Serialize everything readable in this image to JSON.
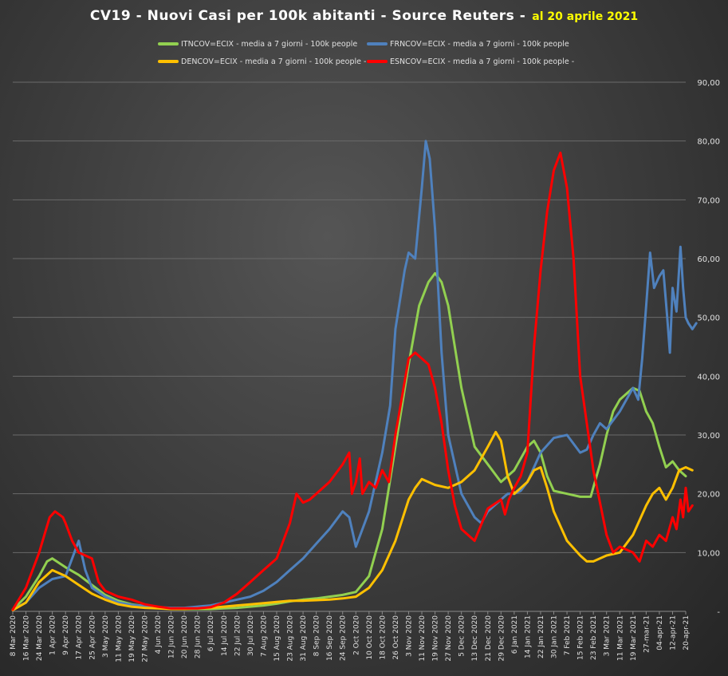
{
  "chart_data": {
    "type": "line",
    "title": "CV19 - Nuovi Casi per 100k abitanti  - Source Reuters -",
    "subtitle": "al 20 aprile 2021",
    "colors": {
      "title": "#ffffff",
      "subtitle": "#ffff00",
      "axis_text": "#e0e0e0",
      "grid": "#6a6a6a"
    },
    "ylim": [
      0,
      90
    ],
    "y_ticks": [
      "-",
      "10,00",
      "20,00",
      "30,00",
      "40,00",
      "50,00",
      "60,00",
      "70,00",
      "80,00",
      "90,00"
    ],
    "y_axis_side": "right",
    "grid": true,
    "legend_position": "top",
    "x_tick_labels": [
      "8 Mar 2020",
      "16 Mar 2020",
      "24 Mar 2020",
      "1 Apr 2020",
      "9 Apr 2020",
      "17 Apr 2020",
      "25 Apr 2020",
      "3 May 2020",
      "11 May 2020",
      "19 May 2020",
      "27 May 2020",
      "4 Jun 2020",
      "12 Jun 2020",
      "20 Jun 2020",
      "28 Jun 2020",
      "6 Jul 2020",
      "14 Jul 2020",
      "22 Jul 2020",
      "30 Jul 2020",
      "7 Aug 2020",
      "15 Aug 2020",
      "23 Aug 2020",
      "31 Aug 2020",
      "8 Sep 2020",
      "16 Sep 2020",
      "24 Sep 2020",
      "2 Oct 2020",
      "10 Oct 2020",
      "18 Oct 2020",
      "26 Oct 2020",
      "3 Nov 2020",
      "11 Nov 2020",
      "19 Nov 2020",
      "27 Nov 2020",
      "5 Dec 2020",
      "13 Dec 2020",
      "21 Dec 2020",
      "29 Dec 2020",
      "6 Jan 2021",
      "14 Jan 2021",
      "22 Jan 2021",
      "30 Jan 2021",
      "7 Feb 2021",
      "15 Feb 2021",
      "23 Feb 2021",
      "3 Mar 2021",
      "11 Mar 2021",
      "19 Mar 2021",
      "27-mar-21",
      "04-apr-21",
      "12-apr-21",
      "20-apr-21"
    ],
    "series": [
      {
        "name": "ITNCOV=ECIX - media a 7 giorni - 100k people",
        "color": "#92d050",
        "points": [
          [
            0,
            0.3
          ],
          [
            1,
            2.5
          ],
          [
            2,
            6
          ],
          [
            2.6,
            8.5
          ],
          [
            3,
            9
          ],
          [
            4,
            7.5
          ],
          [
            5,
            6.2
          ],
          [
            6,
            4.5
          ],
          [
            7,
            2.8
          ],
          [
            8,
            1.8
          ],
          [
            9,
            1.2
          ],
          [
            10,
            0.9
          ],
          [
            11,
            0.7
          ],
          [
            12,
            0.5
          ],
          [
            13,
            0.4
          ],
          [
            14,
            0.4
          ],
          [
            15,
            0.4
          ],
          [
            16,
            0.5
          ],
          [
            17,
            0.6
          ],
          [
            18,
            0.8
          ],
          [
            19,
            1
          ],
          [
            20,
            1.3
          ],
          [
            21,
            1.7
          ],
          [
            22,
            2
          ],
          [
            23,
            2.2
          ],
          [
            24,
            2.5
          ],
          [
            25,
            2.8
          ],
          [
            26,
            3.3
          ],
          [
            27,
            6
          ],
          [
            28,
            14
          ],
          [
            29,
            28
          ],
          [
            30,
            42
          ],
          [
            30.8,
            52
          ],
          [
            31.5,
            56
          ],
          [
            32,
            57.5
          ],
          [
            32.5,
            56
          ],
          [
            33,
            52
          ],
          [
            34,
            38
          ],
          [
            35,
            28
          ],
          [
            36,
            25
          ],
          [
            37,
            22
          ],
          [
            38,
            24
          ],
          [
            39,
            28
          ],
          [
            39.5,
            29
          ],
          [
            40,
            27
          ],
          [
            40.5,
            23
          ],
          [
            41,
            20.5
          ],
          [
            42,
            20
          ],
          [
            43,
            19.5
          ],
          [
            43.8,
            19.5
          ],
          [
            44.5,
            25
          ],
          [
            45,
            30
          ],
          [
            45.5,
            34
          ],
          [
            46,
            36
          ],
          [
            47,
            38
          ],
          [
            47.5,
            37.5
          ],
          [
            48,
            34
          ],
          [
            48.5,
            32
          ],
          [
            49,
            28
          ],
          [
            49.5,
            24.5
          ],
          [
            50,
            25.5
          ],
          [
            50.5,
            24
          ],
          [
            51,
            23
          ]
        ]
      },
      {
        "name": "FRNCOV=ECIX - media a 7 giorni - 100k people",
        "color": "#4f81bd",
        "points": [
          [
            0,
            0.3
          ],
          [
            1,
            1.5
          ],
          [
            2,
            4
          ],
          [
            3,
            5.5
          ],
          [
            4,
            6
          ],
          [
            4.5,
            9
          ],
          [
            5,
            12
          ],
          [
            5.5,
            7
          ],
          [
            6,
            4
          ],
          [
            7,
            2.5
          ],
          [
            8,
            1.5
          ],
          [
            9,
            1.1
          ],
          [
            10,
            0.9
          ],
          [
            11,
            0.7
          ],
          [
            12,
            0.6
          ],
          [
            13,
            0.6
          ],
          [
            14,
            0.8
          ],
          [
            15,
            1
          ],
          [
            16,
            1.5
          ],
          [
            17,
            2
          ],
          [
            18,
            2.5
          ],
          [
            19,
            3.5
          ],
          [
            20,
            5
          ],
          [
            21,
            7
          ],
          [
            22,
            9
          ],
          [
            23,
            11.5
          ],
          [
            24,
            14
          ],
          [
            25,
            17
          ],
          [
            25.5,
            16
          ],
          [
            26,
            11
          ],
          [
            27,
            17
          ],
          [
            28,
            27
          ],
          [
            28.6,
            35
          ],
          [
            29,
            48
          ],
          [
            29.7,
            58
          ],
          [
            30,
            61
          ],
          [
            30.5,
            60
          ],
          [
            31,
            72
          ],
          [
            31.3,
            80
          ],
          [
            31.6,
            77
          ],
          [
            32,
            65
          ],
          [
            32.5,
            44
          ],
          [
            33,
            30
          ],
          [
            34,
            20
          ],
          [
            35,
            16
          ],
          [
            35.5,
            15
          ],
          [
            36,
            17
          ],
          [
            37,
            19
          ],
          [
            37.5,
            20
          ],
          [
            38,
            20
          ],
          [
            38.5,
            20.5
          ],
          [
            39,
            22
          ],
          [
            40,
            27
          ],
          [
            41,
            29.5
          ],
          [
            42,
            30
          ],
          [
            43,
            27
          ],
          [
            43.5,
            27.5
          ],
          [
            44,
            30
          ],
          [
            44.5,
            32
          ],
          [
            45,
            31
          ],
          [
            46,
            34
          ],
          [
            47,
            38
          ],
          [
            47.4,
            36
          ],
          [
            47.7,
            43
          ],
          [
            48,
            52
          ],
          [
            48.3,
            61
          ],
          [
            48.6,
            55
          ],
          [
            49,
            57
          ],
          [
            49.3,
            58
          ],
          [
            49.6,
            50
          ],
          [
            49.8,
            44
          ],
          [
            50,
            55
          ],
          [
            50.3,
            51
          ],
          [
            50.6,
            62
          ],
          [
            50.8,
            55
          ],
          [
            51,
            50
          ],
          [
            51.2,
            49
          ],
          [
            51.5,
            48
          ],
          [
            51.8,
            49
          ]
        ]
      },
      {
        "name": "DENCOV=ECIX - media a 7 giorni - 100k people -",
        "color": "#ffc000",
        "points": [
          [
            0,
            0.2
          ],
          [
            1,
            1.5
          ],
          [
            2,
            5
          ],
          [
            3,
            7
          ],
          [
            4,
            6
          ],
          [
            5,
            4.5
          ],
          [
            6,
            3
          ],
          [
            7,
            2
          ],
          [
            8,
            1.2
          ],
          [
            9,
            0.8
          ],
          [
            10,
            0.6
          ],
          [
            11,
            0.5
          ],
          [
            12,
            0.4
          ],
          [
            13,
            0.4
          ],
          [
            14,
            0.5
          ],
          [
            15,
            0.6
          ],
          [
            16,
            0.8
          ],
          [
            17,
            1
          ],
          [
            18,
            1.2
          ],
          [
            19,
            1.4
          ],
          [
            20,
            1.6
          ],
          [
            21,
            1.8
          ],
          [
            22,
            1.8
          ],
          [
            23,
            1.9
          ],
          [
            24,
            2
          ],
          [
            25,
            2.2
          ],
          [
            26,
            2.5
          ],
          [
            27,
            4
          ],
          [
            28,
            7
          ],
          [
            29,
            12
          ],
          [
            30,
            19
          ],
          [
            30.5,
            21
          ],
          [
            31,
            22.5
          ],
          [
            32,
            21.5
          ],
          [
            33,
            21
          ],
          [
            34,
            22
          ],
          [
            35,
            24
          ],
          [
            36,
            28
          ],
          [
            36.6,
            30.5
          ],
          [
            37,
            29
          ],
          [
            37.5,
            23
          ],
          [
            38,
            20
          ],
          [
            39,
            22
          ],
          [
            39.5,
            24
          ],
          [
            40,
            24.5
          ],
          [
            40.5,
            21
          ],
          [
            41,
            17
          ],
          [
            42,
            12
          ],
          [
            43,
            9.5
          ],
          [
            43.5,
            8.5
          ],
          [
            44,
            8.5
          ],
          [
            45,
            9.5
          ],
          [
            46,
            10
          ],
          [
            47,
            13
          ],
          [
            48,
            18
          ],
          [
            48.5,
            20
          ],
          [
            49,
            21
          ],
          [
            49.5,
            19
          ],
          [
            50,
            21
          ],
          [
            50.5,
            24
          ],
          [
            51,
            24.5
          ],
          [
            51.5,
            24
          ]
        ]
      },
      {
        "name": "ESNCOV=ECIX - media a 7 giorni - 100k people -",
        "color": "#ff0000",
        "points": [
          [
            0,
            0.3
          ],
          [
            1,
            4
          ],
          [
            2,
            10
          ],
          [
            2.8,
            16
          ],
          [
            3.2,
            17
          ],
          [
            3.8,
            16
          ],
          [
            4,
            15
          ],
          [
            4.5,
            12
          ],
          [
            5,
            10
          ],
          [
            6,
            9
          ],
          [
            6.5,
            5
          ],
          [
            7,
            3.5
          ],
          [
            8,
            2.5
          ],
          [
            9,
            2
          ],
          [
            10,
            1.2
          ],
          [
            11,
            0.8
          ],
          [
            12,
            0.5
          ],
          [
            13,
            0.5
          ],
          [
            14,
            0.5
          ],
          [
            15,
            0.7
          ],
          [
            16,
            1.5
          ],
          [
            17,
            3
          ],
          [
            18,
            5
          ],
          [
            19,
            7
          ],
          [
            20,
            9
          ],
          [
            21,
            15
          ],
          [
            21.5,
            20
          ],
          [
            22,
            18.5
          ],
          [
            22.5,
            19
          ],
          [
            23,
            20
          ],
          [
            24,
            22
          ],
          [
            25,
            25
          ],
          [
            25.5,
            27
          ],
          [
            25.7,
            20
          ],
          [
            26,
            22
          ],
          [
            26.3,
            26
          ],
          [
            26.5,
            20
          ],
          [
            27,
            22
          ],
          [
            27.5,
            21
          ],
          [
            28,
            24
          ],
          [
            28.5,
            22
          ],
          [
            29,
            30
          ],
          [
            30,
            43
          ],
          [
            30.5,
            44
          ],
          [
            31,
            43
          ],
          [
            31.5,
            42
          ],
          [
            32,
            38
          ],
          [
            32.5,
            32
          ],
          [
            33,
            24
          ],
          [
            33.5,
            18
          ],
          [
            34,
            14
          ],
          [
            35,
            12
          ],
          [
            36,
            17.5
          ],
          [
            37,
            19
          ],
          [
            37.3,
            16.5
          ],
          [
            37.6,
            19
          ],
          [
            38,
            21
          ],
          [
            38.5,
            23
          ],
          [
            39,
            27
          ],
          [
            39.5,
            45
          ],
          [
            40,
            58
          ],
          [
            40.5,
            68
          ],
          [
            41,
            75
          ],
          [
            41.5,
            78
          ],
          [
            42,
            72
          ],
          [
            42.5,
            60
          ],
          [
            43,
            40
          ],
          [
            44,
            24
          ],
          [
            45,
            13
          ],
          [
            45.5,
            10
          ],
          [
            46,
            11
          ],
          [
            46.5,
            10.5
          ],
          [
            47,
            10
          ],
          [
            47.5,
            8.5
          ],
          [
            48,
            12
          ],
          [
            48.5,
            11
          ],
          [
            49,
            13
          ],
          [
            49.5,
            12
          ],
          [
            50,
            16
          ],
          [
            50.3,
            14
          ],
          [
            50.6,
            19
          ],
          [
            50.8,
            16
          ],
          [
            51,
            21
          ],
          [
            51.2,
            17
          ],
          [
            51.5,
            18
          ]
        ]
      }
    ]
  }
}
